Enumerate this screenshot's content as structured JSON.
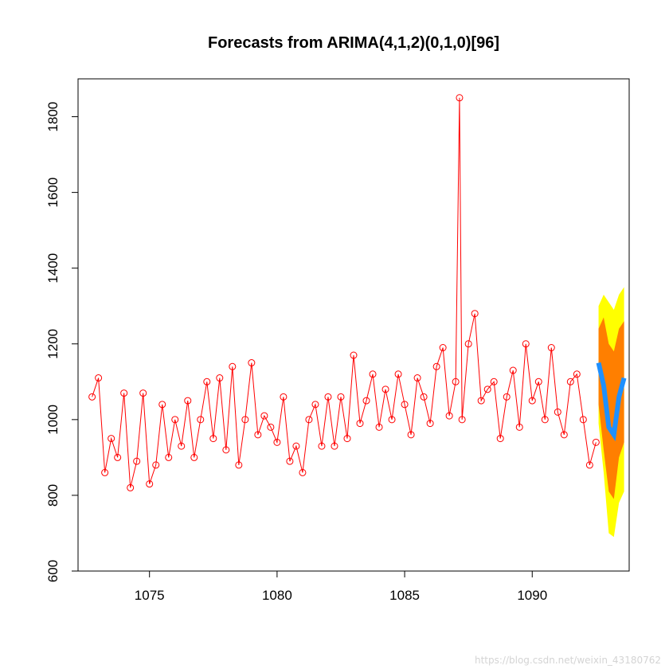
{
  "chart_data": {
    "type": "line",
    "title": "Forecasts from ARIMA(4,1,2)(0,1,0)[96]",
    "xlabel": "",
    "ylabel": "",
    "xlim": [
      1072.2,
      1093.8
    ],
    "ylim": [
      600,
      1900
    ],
    "x_ticks": [
      1075,
      1080,
      1085,
      1090
    ],
    "y_ticks": [
      600,
      800,
      1000,
      1200,
      1400,
      1600,
      1800
    ],
    "grid": false,
    "legend": "none",
    "observed": {
      "color": "#ff0000",
      "marker": "open-circle",
      "x": [
        1072.75,
        1073.0,
        1073.25,
        1073.5,
        1073.75,
        1074.0,
        1074.25,
        1074.5,
        1074.75,
        1075.0,
        1075.25,
        1075.5,
        1075.75,
        1076.0,
        1076.25,
        1076.5,
        1076.75,
        1077.0,
        1077.25,
        1077.5,
        1077.75,
        1078.0,
        1078.25,
        1078.5,
        1078.75,
        1079.0,
        1079.25,
        1079.5,
        1079.75,
        1080.0,
        1080.25,
        1080.5,
        1080.75,
        1081.0,
        1081.25,
        1081.5,
        1081.75,
        1082.0,
        1082.25,
        1082.5,
        1082.75,
        1083.0,
        1083.25,
        1083.5,
        1083.75,
        1084.0,
        1084.25,
        1084.5,
        1084.75,
        1085.0,
        1085.25,
        1085.5,
        1085.75,
        1086.0,
        1086.25,
        1086.5,
        1086.75,
        1087.0,
        1087.15,
        1087.25,
        1087.5,
        1087.75,
        1088.0,
        1088.25,
        1088.5,
        1088.75,
        1089.0,
        1089.25,
        1089.5,
        1089.75,
        1090.0,
        1090.25,
        1090.5,
        1090.75,
        1091.0,
        1091.25,
        1091.5,
        1091.75,
        1092.0,
        1092.25,
        1092.5
      ],
      "y": [
        1060,
        1110,
        860,
        950,
        900,
        1070,
        820,
        890,
        1070,
        830,
        880,
        1040,
        900,
        1000,
        930,
        1050,
        900,
        1000,
        1100,
        950,
        1110,
        920,
        1140,
        880,
        1000,
        1150,
        960,
        1010,
        980,
        940,
        1060,
        890,
        930,
        860,
        1000,
        1040,
        930,
        1060,
        930,
        1060,
        950,
        1170,
        990,
        1050,
        1120,
        980,
        1080,
        1000,
        1120,
        1040,
        960,
        1110,
        1060,
        990,
        1140,
        1190,
        1010,
        1100,
        1850,
        1000,
        1200,
        1280,
        1050,
        1080,
        1100,
        950,
        1060,
        1130,
        980,
        1200,
        1050,
        1100,
        1000,
        1190,
        1020,
        960,
        1100,
        1120,
        1000,
        880,
        940
      ]
    },
    "forecast": {
      "x": [
        1092.6,
        1092.8,
        1093.0,
        1093.2,
        1093.4,
        1093.6
      ],
      "mean": [
        1150,
        1090,
        980,
        960,
        1060,
        1110
      ],
      "lo80": [
        1040,
        920,
        810,
        790,
        900,
        940
      ],
      "hi80": [
        1240,
        1270,
        1200,
        1180,
        1240,
        1260
      ],
      "lo95": [
        990,
        860,
        700,
        690,
        780,
        810
      ],
      "hi95": [
        1300,
        1330,
        1310,
        1290,
        1330,
        1350
      ],
      "color_mean": "#1e90ff",
      "color_80": "#ff7f00",
      "color_95": "#ffff00"
    }
  },
  "watermark": "https://blog.csdn.net/weixin_43180762"
}
